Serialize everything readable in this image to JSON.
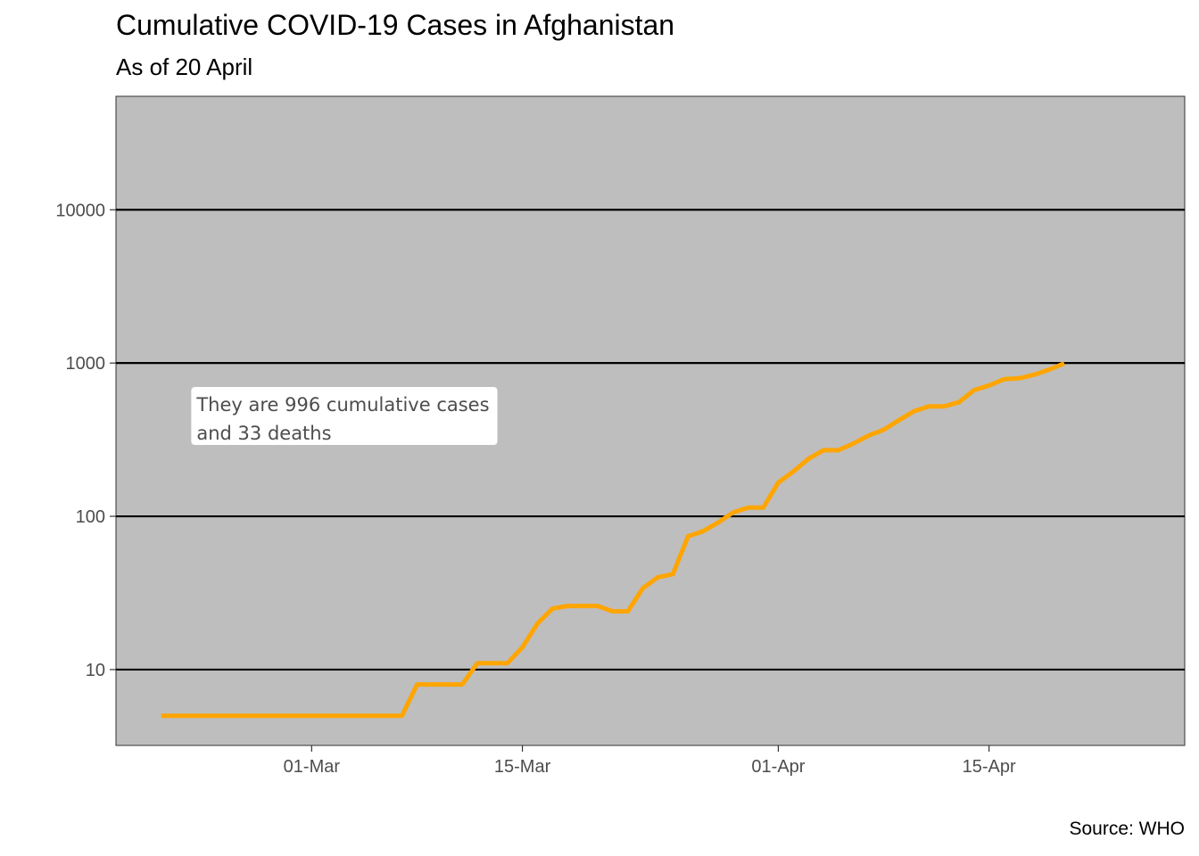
{
  "title": "Cumulative COVID-19 Cases in Afghanistan",
  "subtitle": "As of 20 April",
  "caption": "Source: WHO",
  "colors": {
    "panel_bg": "#bebebe",
    "line": "#ffa500",
    "grid": "#000000",
    "label_bg": "#ffffff"
  },
  "annotation": {
    "lines": [
      "They are 996 cumulative cases",
      "and 33 deaths"
    ],
    "x": "2020-02-22",
    "y": 610
  },
  "chart_data": {
    "type": "line",
    "title": "Cumulative COVID-19 Cases in Afghanistan",
    "subtitle": "As of 20 April",
    "xlabel": "",
    "ylabel": "",
    "y_scale": "log10",
    "xlim": [
      "2020-02-17",
      "2020-04-28"
    ],
    "ylim": [
      3.2,
      55000
    ],
    "grid": "major y only",
    "x_ticks": [
      {
        "date": "2020-03-01",
        "label": "01-Mar"
      },
      {
        "date": "2020-03-15",
        "label": "15-Mar"
      },
      {
        "date": "2020-04-01",
        "label": "01-Apr"
      },
      {
        "date": "2020-04-15",
        "label": "15-Apr"
      }
    ],
    "y_ticks": [
      {
        "value": 10,
        "label": "10"
      },
      {
        "value": 100,
        "label": "100"
      },
      {
        "value": 1000,
        "label": "1000"
      },
      {
        "value": 10000,
        "label": "10000"
      }
    ],
    "series": [
      {
        "x": [
          "2020-02-20",
          "2020-02-21",
          "2020-02-22",
          "2020-02-23",
          "2020-02-24",
          "2020-02-25",
          "2020-02-26",
          "2020-02-27",
          "2020-02-28",
          "2020-02-29",
          "2020-03-01",
          "2020-03-02",
          "2020-03-03",
          "2020-03-04",
          "2020-03-05",
          "2020-03-06",
          "2020-03-07",
          "2020-03-08",
          "2020-03-09",
          "2020-03-10",
          "2020-03-11",
          "2020-03-12",
          "2020-03-13",
          "2020-03-14",
          "2020-03-15",
          "2020-03-16",
          "2020-03-17",
          "2020-03-18",
          "2020-03-19",
          "2020-03-20",
          "2020-03-21",
          "2020-03-22",
          "2020-03-23",
          "2020-03-24",
          "2020-03-25",
          "2020-03-26",
          "2020-03-27",
          "2020-03-28",
          "2020-03-29",
          "2020-03-30",
          "2020-03-31",
          "2020-04-01",
          "2020-04-02",
          "2020-04-03",
          "2020-04-04",
          "2020-04-05",
          "2020-04-06",
          "2020-04-07",
          "2020-04-08",
          "2020-04-09",
          "2020-04-10",
          "2020-04-11",
          "2020-04-12",
          "2020-04-13",
          "2020-04-14",
          "2020-04-15",
          "2020-04-16",
          "2020-04-17",
          "2020-04-18",
          "2020-04-19",
          "2020-04-20"
        ],
        "values": [
          5,
          5,
          5,
          5,
          5,
          5,
          5,
          5,
          5,
          5,
          5,
          5,
          5,
          5,
          5,
          5,
          5,
          8,
          8,
          8,
          8,
          11,
          11,
          11,
          14,
          20,
          25,
          26,
          26,
          26,
          24,
          24,
          34,
          40,
          42,
          74,
          80,
          91,
          106,
          114,
          114,
          166,
          196,
          237,
          270,
          270,
          299,
          337,
          367,
          423,
          484,
          521,
          521,
          555,
          665,
          714,
          784,
          795,
          840,
          906,
          996
        ]
      }
    ]
  }
}
